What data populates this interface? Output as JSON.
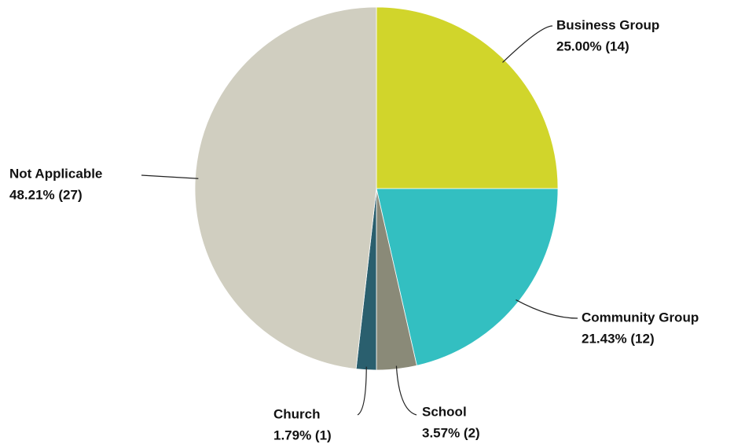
{
  "chart_data": {
    "type": "pie",
    "categories": [
      "Business Group",
      "Community Group",
      "School",
      "Church",
      "Not Applicable"
    ],
    "values": [
      25.0,
      21.43,
      3.57,
      1.79,
      48.21
    ],
    "value_labels": [
      "25.00% (14)",
      "21.43% (12)",
      "3.57% (2)",
      "1.79% (1)",
      "48.21% (27)"
    ],
    "colors": [
      "#d1d52b",
      "#33bfc1",
      "#8a8a78",
      "#2a5f6e",
      "#d0cec0"
    ]
  }
}
